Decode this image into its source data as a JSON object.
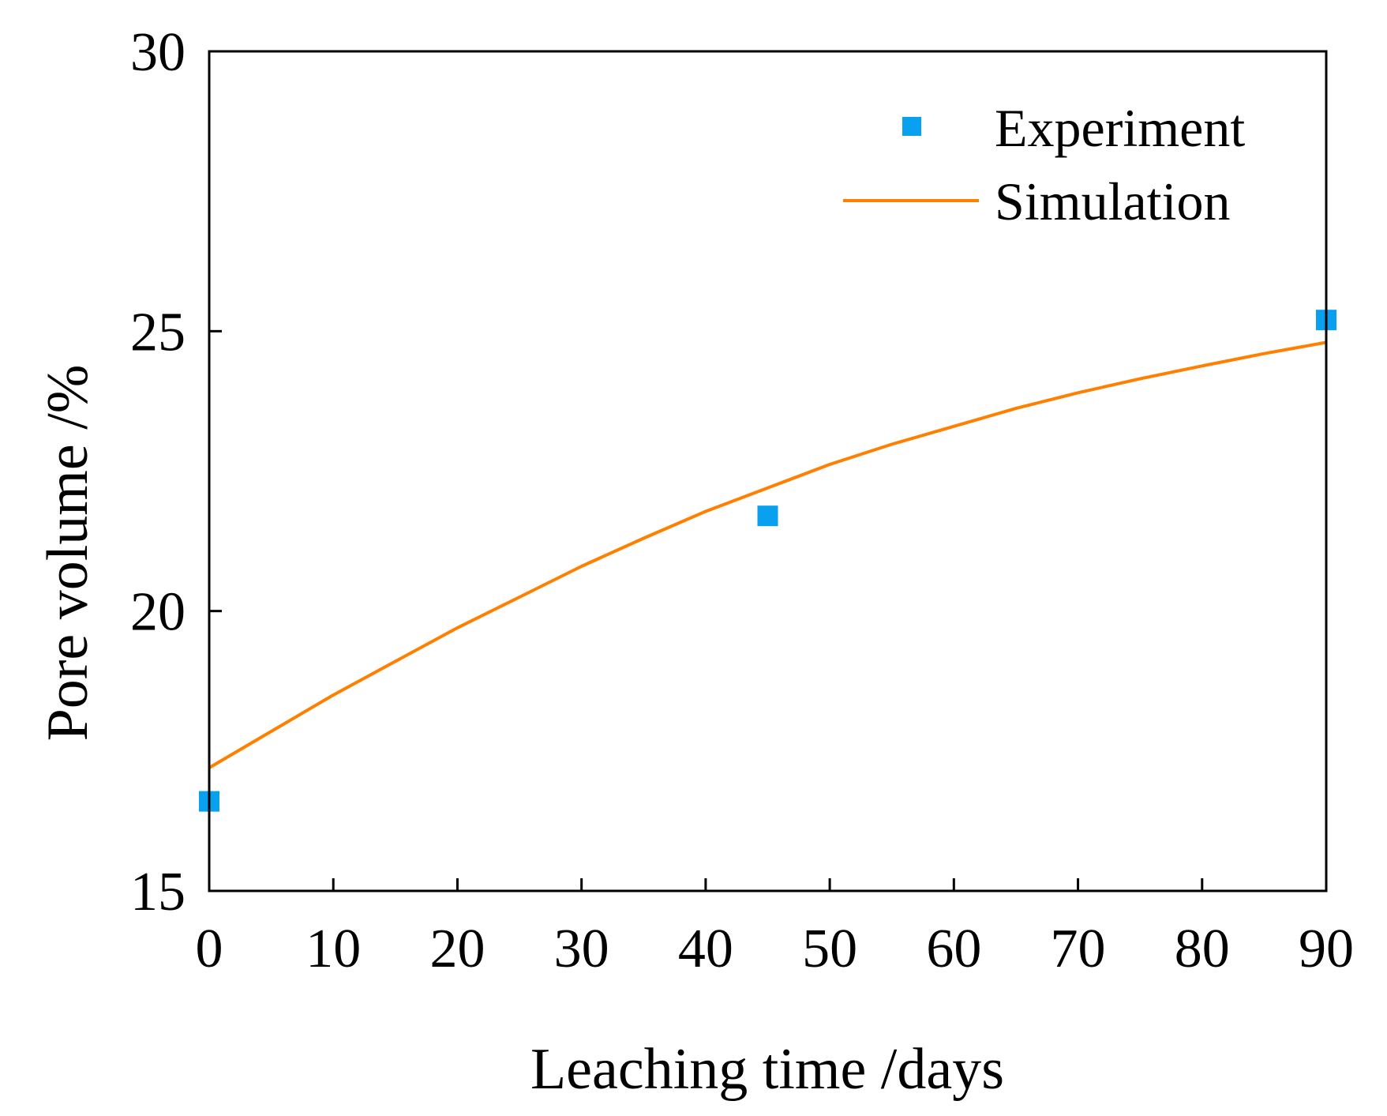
{
  "chart_data": {
    "type": "line",
    "title": "",
    "xlabel": "Leaching time /days",
    "ylabel": "Pore volume /%",
    "xlim": [
      0,
      90
    ],
    "ylim": [
      15,
      30
    ],
    "xticks": [
      0,
      10,
      20,
      30,
      40,
      50,
      60,
      70,
      80,
      90
    ],
    "yticks": [
      15,
      20,
      25,
      30
    ],
    "grid": false,
    "legend_position": "top-right",
    "series": [
      {
        "name": "Experiment",
        "kind": "scatter",
        "color": "#0aa0f0",
        "x": [
          0,
          45,
          90
        ],
        "y": [
          16.6,
          21.7,
          25.2
        ]
      },
      {
        "name": "Simulation",
        "kind": "line",
        "color": "#ff8000",
        "x": [
          0,
          5,
          10,
          15,
          20,
          25,
          30,
          35,
          40,
          45,
          50,
          55,
          60,
          65,
          70,
          75,
          80,
          85,
          90
        ],
        "y": [
          17.2,
          17.85,
          18.5,
          19.1,
          19.7,
          20.25,
          20.8,
          21.3,
          21.78,
          22.2,
          22.62,
          22.98,
          23.3,
          23.62,
          23.9,
          24.15,
          24.38,
          24.6,
          24.8
        ]
      }
    ]
  }
}
